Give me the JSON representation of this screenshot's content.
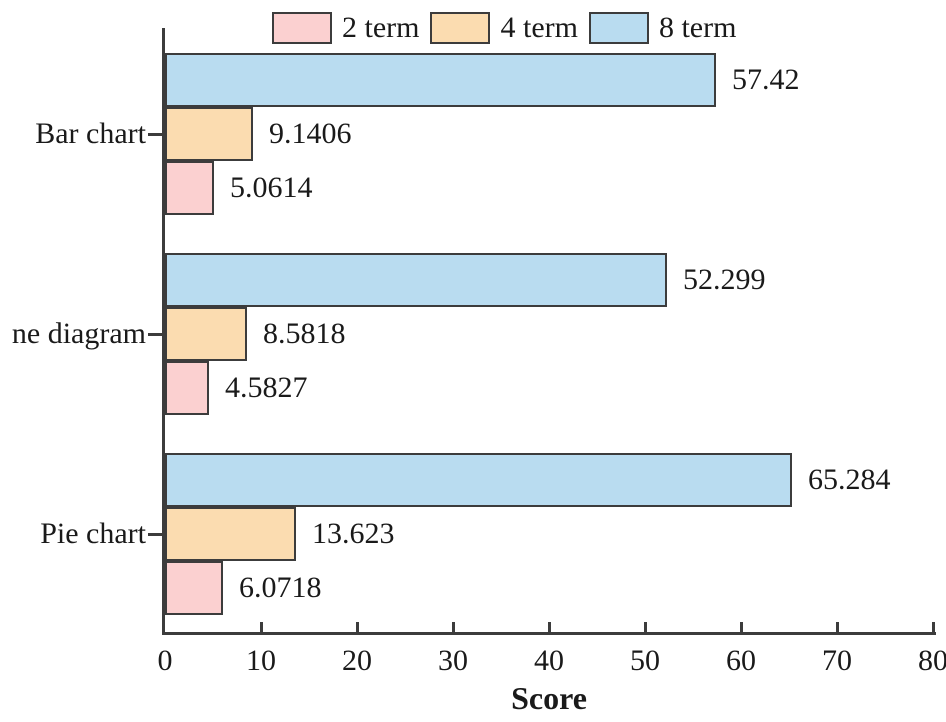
{
  "chart_data": {
    "type": "bar",
    "orientation": "horizontal",
    "title": "",
    "xlabel": "Score",
    "ylabel": "",
    "categories": [
      "Bar chart",
      "ne diagram",
      "Pie chart"
    ],
    "series": [
      {
        "name": "2 term",
        "color": "#FBD0D0",
        "values": [
          5.0614,
          4.5827,
          6.0718
        ],
        "labels": [
          "5.0614",
          "4.5827",
          "6.0718"
        ]
      },
      {
        "name": "4 term",
        "color": "#FBDCB0",
        "values": [
          9.1406,
          8.5818,
          13.623
        ],
        "labels": [
          "9.1406",
          "8.5818",
          "13.623"
        ]
      },
      {
        "name": "8 term",
        "color": "#B9DCF0",
        "values": [
          57.42,
          52.299,
          65.284
        ],
        "labels": [
          "57.42",
          "52.299",
          "65.284"
        ]
      }
    ],
    "row_order_top_to_bottom": [
      "8 term",
      "4 term",
      "2 term"
    ],
    "xlim": [
      0,
      80
    ],
    "xticks": [
      "0",
      "10",
      "20",
      "30",
      "40",
      "50",
      "60",
      "70",
      "80"
    ],
    "legend_position": "top",
    "grid": false
  },
  "colors": {
    "axis": "#3c3c3c",
    "bar_border": "#3c3c3c",
    "text": "#1a1a1a",
    "background": "#ffffff"
  }
}
